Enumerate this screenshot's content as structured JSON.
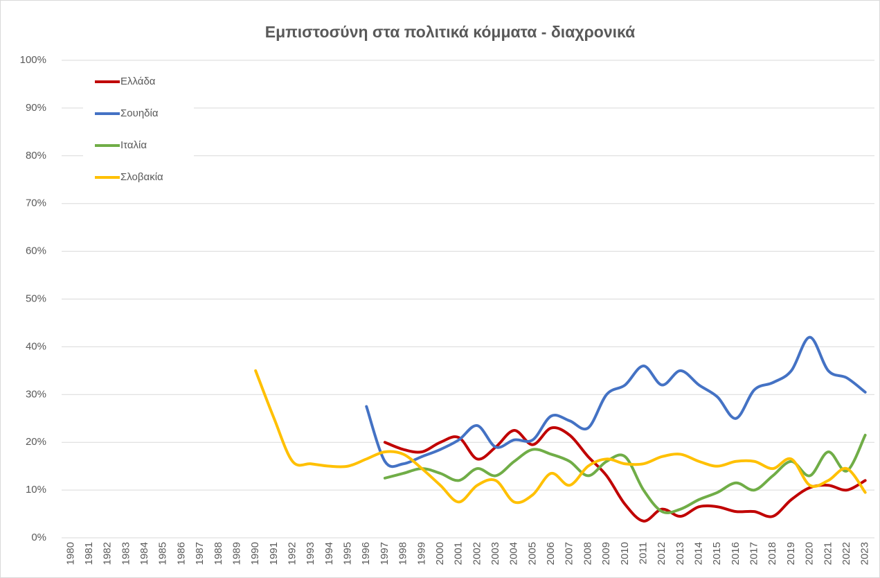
{
  "chart_data": {
    "type": "line",
    "title": "Εμπιστοσύνη στα πολιτικά κόμματα - διαχρονικά",
    "categories": [
      "1980",
      "1981",
      "1982",
      "1983",
      "1984",
      "1985",
      "1986",
      "1987",
      "1988",
      "1989",
      "1990",
      "1991",
      "1992",
      "1993",
      "1994",
      "1995",
      "1996",
      "1997",
      "1998",
      "1999",
      "2000",
      "2001",
      "2002",
      "2003",
      "2004",
      "2005",
      "2006",
      "2007",
      "2008",
      "2009",
      "2010",
      "2011",
      "2012",
      "2013",
      "2014",
      "2015",
      "2016",
      "2017",
      "2018",
      "2019",
      "2020",
      "2021",
      "2022",
      "2023"
    ],
    "series": [
      {
        "name": "Ελλάδα",
        "color": "#c00000",
        "values": [
          null,
          null,
          null,
          null,
          null,
          null,
          null,
          null,
          null,
          null,
          null,
          null,
          null,
          null,
          null,
          null,
          null,
          20,
          18.5,
          18,
          20,
          21,
          16.5,
          19,
          22.5,
          19.5,
          23,
          21.5,
          17,
          13,
          7,
          3.5,
          6,
          4.5,
          6.5,
          6.5,
          5.5,
          5.5,
          4.5,
          8,
          10.5,
          11,
          10,
          12
        ]
      },
      {
        "name": "Σουηδία",
        "color": "#4472c4",
        "values": [
          null,
          null,
          null,
          null,
          null,
          null,
          null,
          null,
          null,
          null,
          null,
          null,
          null,
          null,
          null,
          null,
          27.5,
          16,
          15.5,
          17,
          18.5,
          20.5,
          23.5,
          19,
          20.5,
          20.5,
          25.5,
          24.5,
          23,
          30,
          32,
          36,
          32,
          35,
          32,
          29.5,
          25,
          31,
          32.5,
          35,
          42,
          35,
          33.5,
          30.5
        ]
      },
      {
        "name": "Ιταλία",
        "color": "#70ad47",
        "values": [
          null,
          null,
          null,
          null,
          null,
          null,
          null,
          null,
          null,
          null,
          null,
          null,
          null,
          null,
          null,
          null,
          null,
          12.5,
          13.5,
          14.5,
          13.5,
          12,
          14.5,
          13,
          16,
          18.5,
          17.5,
          16,
          13,
          16,
          17,
          10,
          5.5,
          6,
          8,
          9.5,
          11.5,
          10,
          13,
          16,
          13,
          18,
          14,
          21.5
        ]
      },
      {
        "name": "Σλοβακία",
        "color": "#ffc000",
        "values": [
          null,
          null,
          null,
          null,
          null,
          null,
          null,
          null,
          null,
          null,
          35,
          25,
          16,
          15.5,
          15,
          15,
          16.5,
          18,
          17.5,
          14.5,
          11,
          7.5,
          11,
          12,
          7.5,
          9,
          13.5,
          11,
          15,
          16.5,
          15.5,
          15.5,
          17,
          17.5,
          16,
          15,
          16,
          16,
          14.5,
          16.5,
          11,
          12,
          14.5,
          9.5
        ]
      }
    ],
    "ylim": [
      0,
      100
    ],
    "yticks": [
      {
        "value": 0,
        "label": "0%"
      },
      {
        "value": 10,
        "label": "10%"
      },
      {
        "value": 20,
        "label": "20%"
      },
      {
        "value": 30,
        "label": "30%"
      },
      {
        "value": 40,
        "label": "40%"
      },
      {
        "value": 50,
        "label": "50%"
      },
      {
        "value": 60,
        "label": "60%"
      },
      {
        "value": 70,
        "label": "70%"
      },
      {
        "value": 80,
        "label": "80%"
      },
      {
        "value": 90,
        "label": "90%"
      },
      {
        "value": 100,
        "label": "100%"
      }
    ],
    "grid": true,
    "legend": "top-left"
  }
}
